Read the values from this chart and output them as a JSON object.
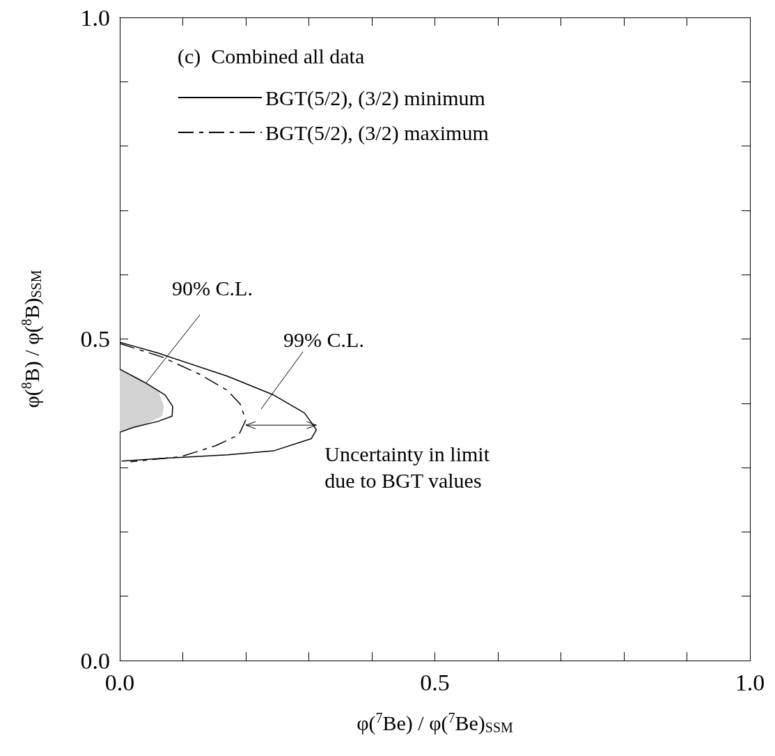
{
  "chart_data": {
    "type": "line",
    "xlabel": "φ($^{7}$Be) / φ($^{7}$Be)$_{SSM}$",
    "ylabel": "φ($^{8}$B) / φ($^{8}$B)$_{SSM}$",
    "legend_title": "(c)  Combined all data",
    "legend": "top",
    "grid": false,
    "marker": "none",
    "xlim": [
      0,
      1
    ],
    "ylim": [
      0,
      1
    ],
    "xticks": [
      {
        "value": 0,
        "label": "0.0"
      },
      {
        "value": 0.1,
        "label": null
      },
      {
        "value": 0.2,
        "label": null
      },
      {
        "value": 0.3,
        "label": null
      },
      {
        "value": 0.4,
        "label": null
      },
      {
        "value": 0.5,
        "label": "0.5"
      },
      {
        "value": 0.6,
        "label": null
      },
      {
        "value": 0.7,
        "label": null
      },
      {
        "value": 0.8,
        "label": null
      },
      {
        "value": 0.9,
        "label": null
      },
      {
        "value": 1,
        "label": "1.0"
      }
    ],
    "yticks": [
      {
        "value": 0,
        "label": "0.0"
      },
      {
        "value": 0.1,
        "label": null
      },
      {
        "value": 0.2,
        "label": null
      },
      {
        "value": 0.3,
        "label": null
      },
      {
        "value": 0.4,
        "label": null
      },
      {
        "value": 0.5,
        "label": "0.5"
      },
      {
        "value": 0.6,
        "label": null
      },
      {
        "value": 0.7,
        "label": null
      },
      {
        "value": 0.8,
        "label": null
      },
      {
        "value": 0.9,
        "label": null
      },
      {
        "value": 1,
        "label": "1.0"
      }
    ],
    "series": [
      {
        "type": "area",
        "color": "#d3d3d3",
        "x": [
          0,
          0.03,
          0.061,
          0.07,
          0.067,
          0.042,
          0.015,
          0
        ],
        "values": [
          0.453,
          0.44,
          0.42,
          0.395,
          0.38,
          0.368,
          0.36,
          0.355
        ]
      },
      {
        "type": "line",
        "name": "BGT(5/2), (3/2) minimum",
        "color": "#000000",
        "line_style": "solid",
        "x": [
          0,
          0.061,
          0.171,
          0.244,
          0.293,
          0.312,
          0.304,
          0.244,
          0.171,
          0.061,
          0.003
        ],
        "values": [
          0.495,
          0.478,
          0.442,
          0.413,
          0.385,
          0.359,
          0.345,
          0.326,
          0.32,
          0.314,
          0.31
        ]
      },
      {
        "type": "line",
        "name": "BGT(5/2), (3/2) maximum",
        "color": "#000000",
        "line_style": "dashed",
        "x": [
          0,
          0.067,
          0.127,
          0.171,
          0.191,
          0.2,
          0.189,
          0.152,
          0.097,
          0.017
        ],
        "values": [
          0.493,
          0.472,
          0.445,
          0.42,
          0.399,
          0.374,
          0.351,
          0.334,
          0.317,
          0.309
        ]
      },
      {
        "type": "line",
        "color": "#000000",
        "line_style": "solid",
        "x": [
          0,
          0.042,
          0.072,
          0.084,
          0.083,
          0.061,
          0.023,
          0
        ],
        "values": [
          0.453,
          0.431,
          0.413,
          0.395,
          0.38,
          0.372,
          0.363,
          0.355
        ]
      }
    ],
    "annotations": [
      "90% C.L.",
      "99% C.L.",
      {
        "text": "Uncertainty in limit\ndue to BGT values",
        "x": 0.312,
        "y": 0.366
      }
    ]
  }
}
